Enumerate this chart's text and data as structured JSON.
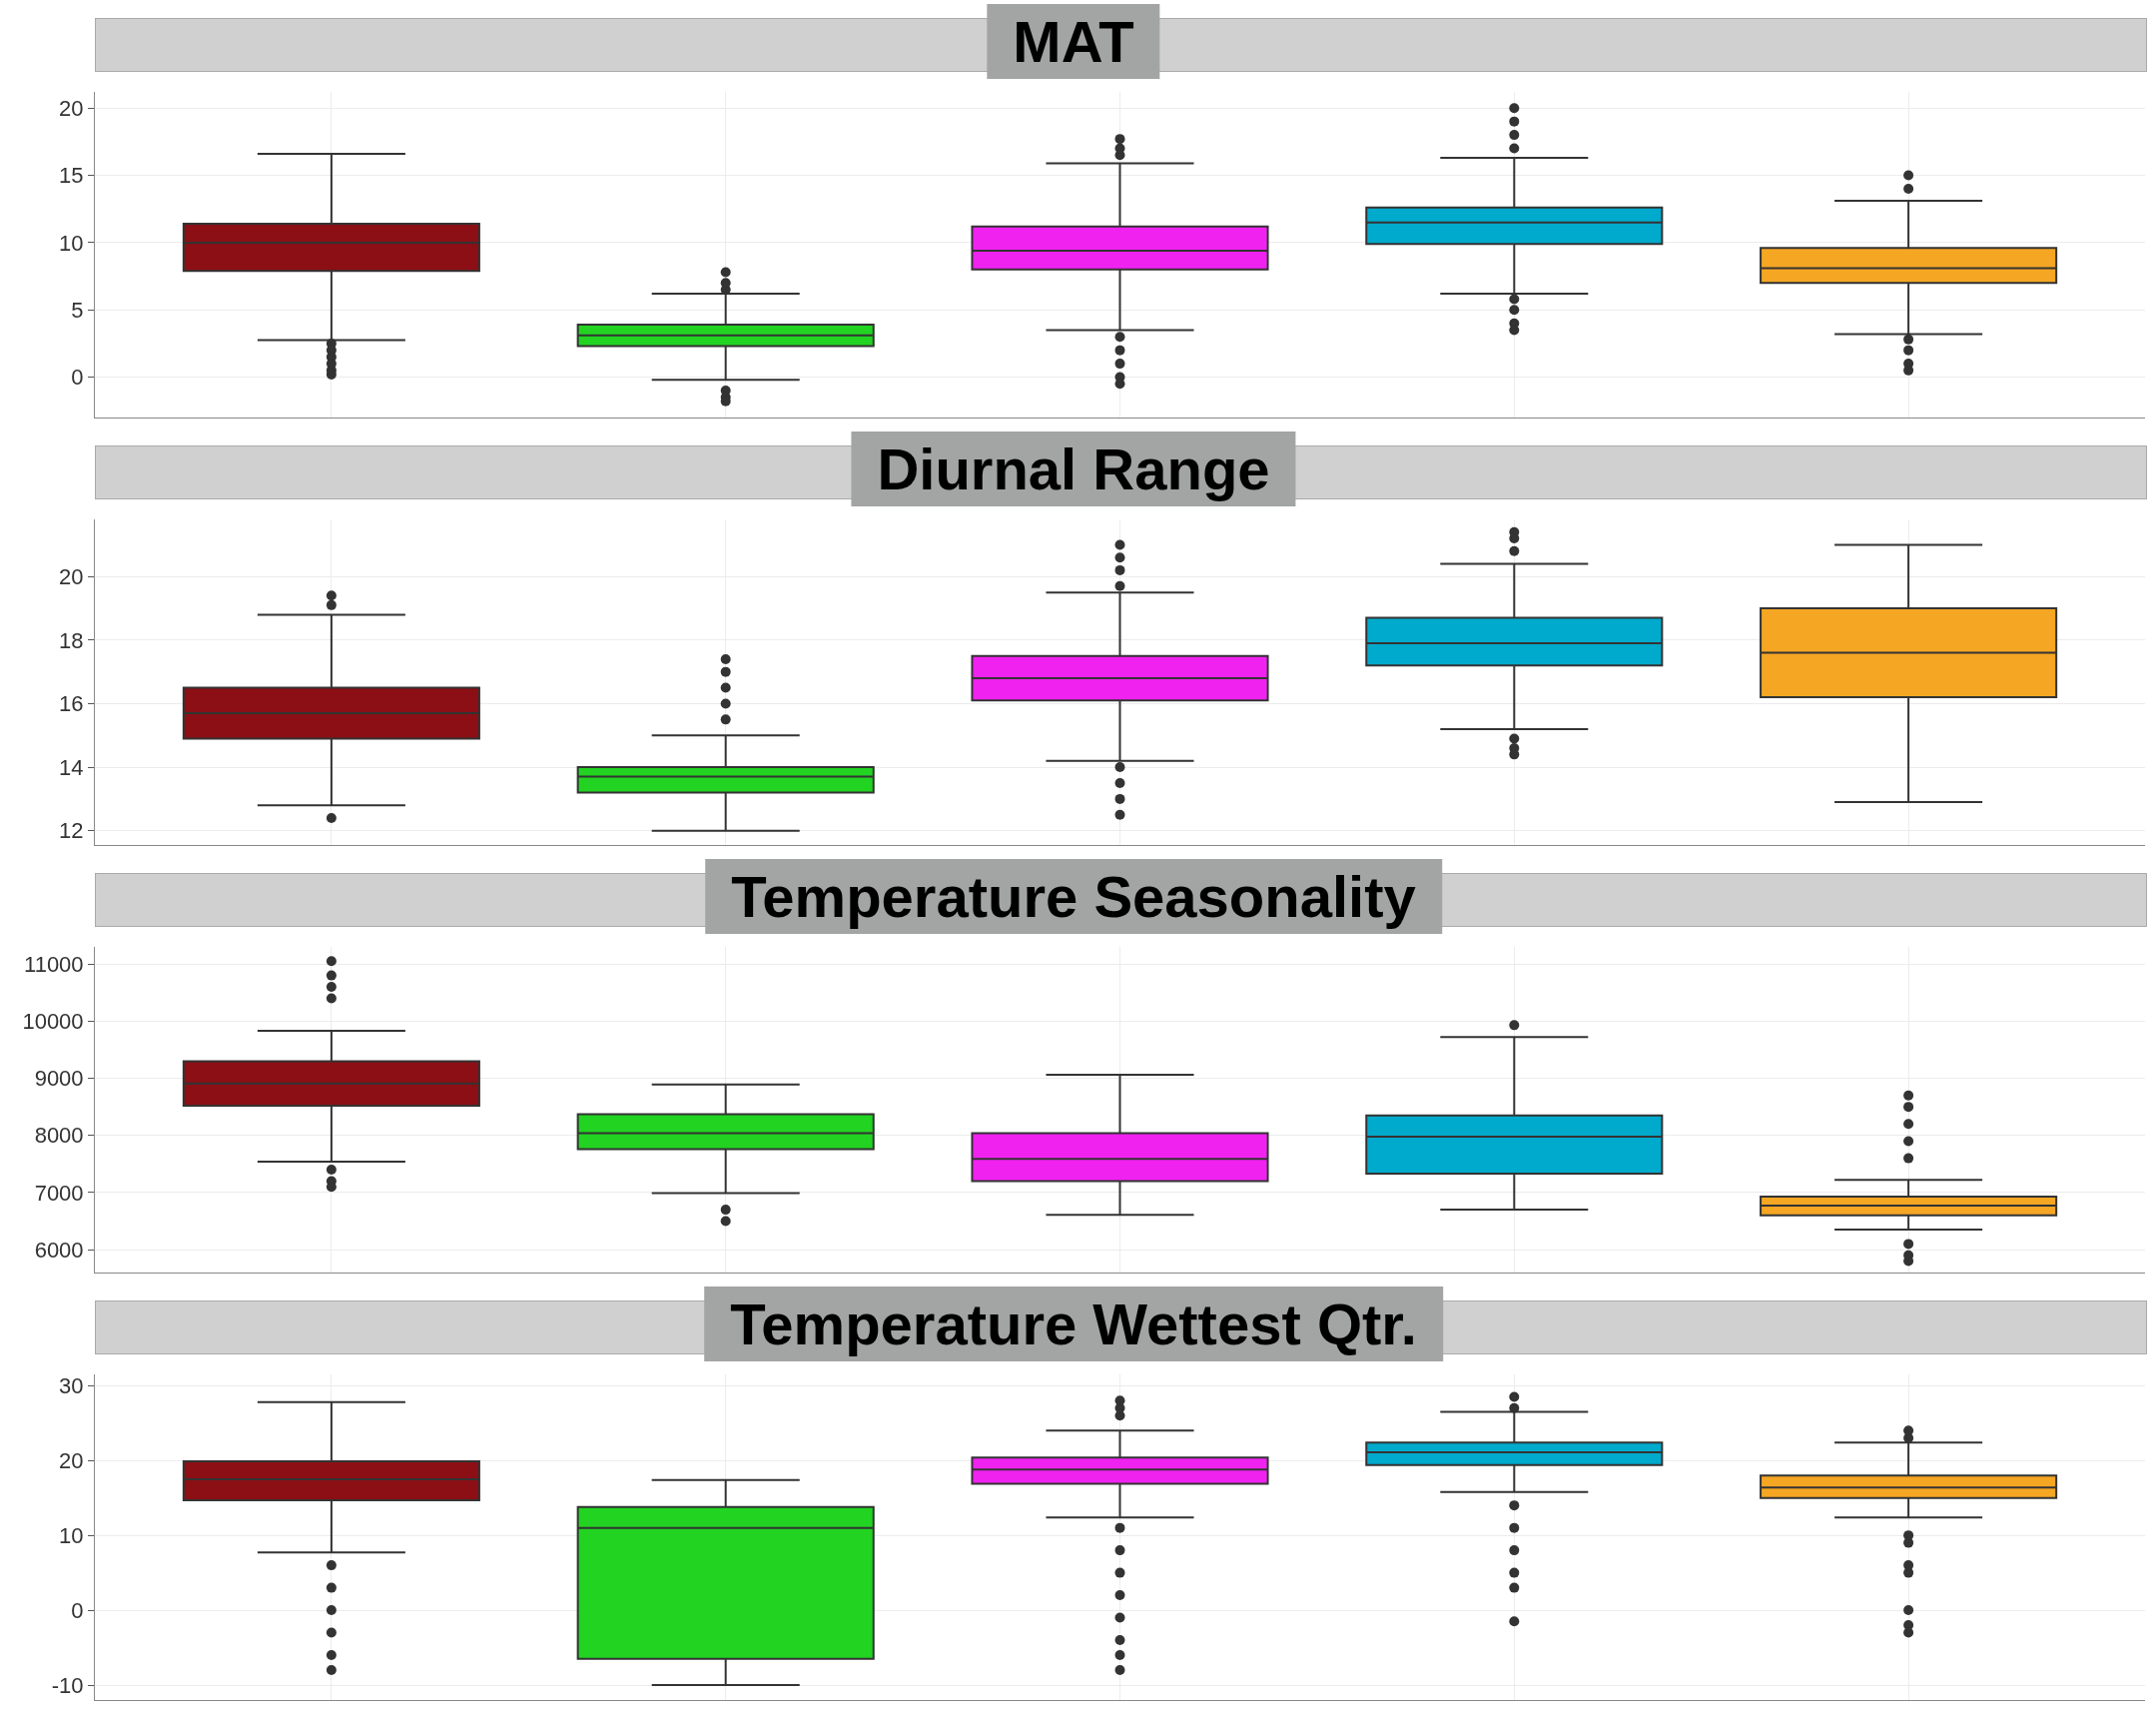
{
  "chart_data": [
    {
      "type": "box",
      "title": "MAT",
      "categories": [
        null,
        null,
        null,
        null,
        null
      ],
      "colors": [
        "#8b0f14",
        "#22d322",
        "#f022f0",
        "#00aacc",
        "#f5a623"
      ],
      "ylim": [
        -3,
        21.2
      ],
      "yticks": [
        0,
        5,
        10,
        15,
        20
      ],
      "grid": true,
      "tick_labels": "y",
      "boxes": [
        {
          "low": 2.75,
          "q1": 7.9,
          "median": 10,
          "q3": 11.4,
          "high": 16.6,
          "outliers": [
            2.5,
            2,
            1.5,
            1,
            0.5,
            0.2
          ]
        },
        {
          "low": -0.2,
          "q1": 2.3,
          "median": 3.1,
          "q3": 3.9,
          "high": 6.2,
          "outliers": [
            6.5,
            7,
            7.8,
            -1,
            -1.5,
            -1.8
          ]
        },
        {
          "low": 3.5,
          "q1": 8,
          "median": 9.4,
          "q3": 11.2,
          "high": 15.9,
          "outliers": [
            16.5,
            17,
            17.7,
            3,
            2,
            1,
            0,
            -0.5
          ]
        },
        {
          "low": 6.2,
          "q1": 9.9,
          "median": 11.5,
          "q3": 12.6,
          "high": 16.3,
          "outliers": [
            17,
            18,
            19,
            20,
            5.8,
            5,
            4,
            3.5
          ]
        },
        {
          "low": 3.2,
          "q1": 7,
          "median": 8.1,
          "q3": 9.6,
          "high": 13.1,
          "outliers": [
            14,
            15,
            2.8,
            2,
            1,
            0.5
          ]
        }
      ]
    },
    {
      "type": "box",
      "title": "Diurnal Range",
      "categories": [
        null,
        null,
        null,
        null,
        null
      ],
      "colors": [
        "#8b0f14",
        "#22d322",
        "#f022f0",
        "#00aacc",
        "#f5a623"
      ],
      "ylim": [
        11.55,
        21.8
      ],
      "yticks": [
        12,
        14,
        16,
        18,
        20
      ],
      "grid": true,
      "tick_labels": "y",
      "boxes": [
        {
          "low": 12.8,
          "q1": 14.9,
          "median": 15.7,
          "q3": 16.5,
          "high": 18.8,
          "outliers": [
            19.1,
            19.4,
            12.4
          ]
        },
        {
          "low": 12,
          "q1": 13.2,
          "median": 13.7,
          "q3": 14,
          "high": 15,
          "outliers": [
            15.5,
            16,
            16.5,
            17,
            17.4
          ]
        },
        {
          "low": 14.2,
          "q1": 16.1,
          "median": 16.8,
          "q3": 17.5,
          "high": 19.5,
          "outliers": [
            19.7,
            20.2,
            20.6,
            21,
            14,
            13.5,
            13,
            12.5
          ]
        },
        {
          "low": 15.2,
          "q1": 17.2,
          "median": 17.9,
          "q3": 18.7,
          "high": 20.4,
          "outliers": [
            20.8,
            21.2,
            21.4,
            14.9,
            14.6,
            14.4
          ]
        },
        {
          "low": 12.9,
          "q1": 16.2,
          "median": 17.6,
          "q3": 19,
          "high": 21
        }
      ]
    },
    {
      "type": "box",
      "title": "Temperature Seasonality",
      "categories": [
        null,
        null,
        null,
        null,
        null
      ],
      "colors": [
        "#8b0f14",
        "#22d322",
        "#f022f0",
        "#00aacc",
        "#f5a623"
      ],
      "ylim": [
        5600,
        11300
      ],
      "yticks": [
        6000,
        7000,
        8000,
        9000,
        10000,
        11000
      ],
      "grid": true,
      "tick_labels": "y",
      "boxes": [
        {
          "low": 7540,
          "q1": 8520,
          "median": 8910,
          "q3": 9300,
          "high": 9830,
          "outliers": [
            10400,
            10600,
            10800,
            11050,
            7400,
            7200,
            7100
          ]
        },
        {
          "low": 6990,
          "q1": 7760,
          "median": 8040,
          "q3": 8370,
          "high": 8890,
          "outliers": [
            6700,
            6500
          ]
        },
        {
          "low": 6610,
          "q1": 7200,
          "median": 7590,
          "q3": 8040,
          "high": 9060
        },
        {
          "low": 6700,
          "q1": 7330,
          "median": 7980,
          "q3": 8350,
          "high": 9720,
          "outliers": [
            9930
          ]
        },
        {
          "low": 6350,
          "q1": 6600,
          "median": 6770,
          "q3": 6930,
          "high": 7220,
          "outliers": [
            7600,
            7900,
            8200,
            8500,
            8700,
            6100,
            5900,
            5800
          ]
        }
      ]
    },
    {
      "type": "box",
      "title": "Temperature Wettest Qtr.",
      "categories": [
        null,
        null,
        null,
        null,
        null
      ],
      "colors": [
        "#8b0f14",
        "#22d322",
        "#f022f0",
        "#00aacc",
        "#f5a623"
      ],
      "ylim": [
        -12,
        31.5
      ],
      "yticks": [
        -10,
        0,
        10,
        20,
        30
      ],
      "grid": true,
      "tick_labels": "y",
      "boxes": [
        {
          "low": 7.7,
          "q1": 14.7,
          "median": 17.5,
          "q3": 19.9,
          "high": 27.8,
          "outliers": [
            6,
            3,
            0,
            -3,
            -6,
            -8
          ]
        },
        {
          "low": -10,
          "q1": -6.5,
          "median": 11,
          "q3": 13.8,
          "high": 17.4
        },
        {
          "low": 12.4,
          "q1": 16.9,
          "median": 18.8,
          "q3": 20.4,
          "high": 24,
          "outliers": [
            26,
            27,
            28,
            11,
            8,
            5,
            2,
            -1,
            -4,
            -6,
            -8
          ]
        },
        {
          "low": 15.8,
          "q1": 19.4,
          "median": 21.1,
          "q3": 22.4,
          "high": 26.5,
          "outliers": [
            27,
            28.5,
            14,
            11,
            8,
            5,
            3,
            -1.5
          ]
        },
        {
          "low": 12.4,
          "q1": 15,
          "median": 16.4,
          "q3": 18,
          "high": 22.4,
          "outliers": [
            23,
            24,
            10,
            9,
            6,
            5,
            0,
            -2,
            -3
          ]
        }
      ]
    }
  ]
}
